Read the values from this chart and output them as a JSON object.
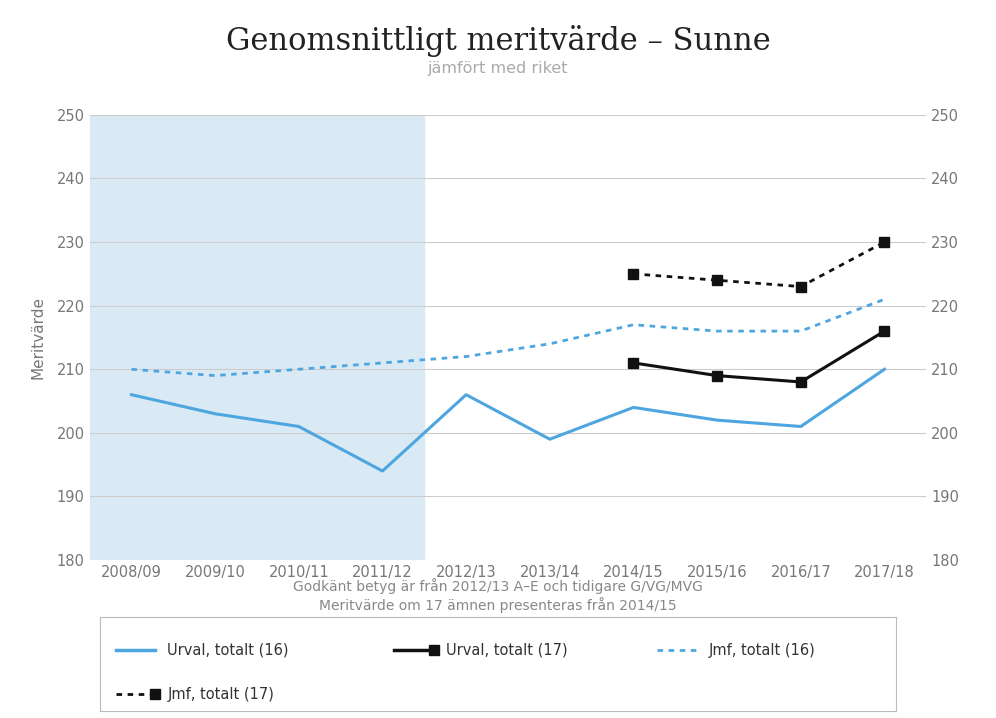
{
  "title": "Genomsnittligt meritvärde – Sunne",
  "subtitle": "jämfört med riket",
  "xlabel_line1": "Godkänt betyg är från 2012/13 A–E och tidigare G/VG/MVG",
  "xlabel_line2": "Meritvärde om 17 ämnen presenteras från 2014/15",
  "ylabel": "Meritvärde",
  "ylim": [
    180,
    250
  ],
  "yticks": [
    180,
    190,
    200,
    210,
    220,
    230,
    240,
    250
  ],
  "categories_16": [
    "2008/09",
    "2009/10",
    "2010/11",
    "2011/12",
    "2012/13",
    "2013/14",
    "2014/15",
    "2015/16",
    "2016/17",
    "2017/18"
  ],
  "categories_17": [
    "2014/15",
    "2015/16",
    "2016/17",
    "2017/18"
  ],
  "urval_16": [
    206,
    203,
    201,
    194,
    206,
    199,
    204,
    202,
    201,
    210
  ],
  "jmf_16": [
    210,
    209,
    210,
    211,
    212,
    214,
    217,
    216,
    216,
    221
  ],
  "urval_17": [
    211,
    209,
    208,
    216
  ],
  "jmf_17": [
    225,
    224,
    223,
    230
  ],
  "shade_color": "#daeaf5",
  "urval16_color": "#4da6e0",
  "jmf16_color": "#4da6e0",
  "urval17_color": "#111111",
  "jmf17_color": "#111111",
  "background_color": "#ffffff",
  "grid_color": "#cccccc",
  "tick_color": "#777777",
  "label_color": "#888888"
}
